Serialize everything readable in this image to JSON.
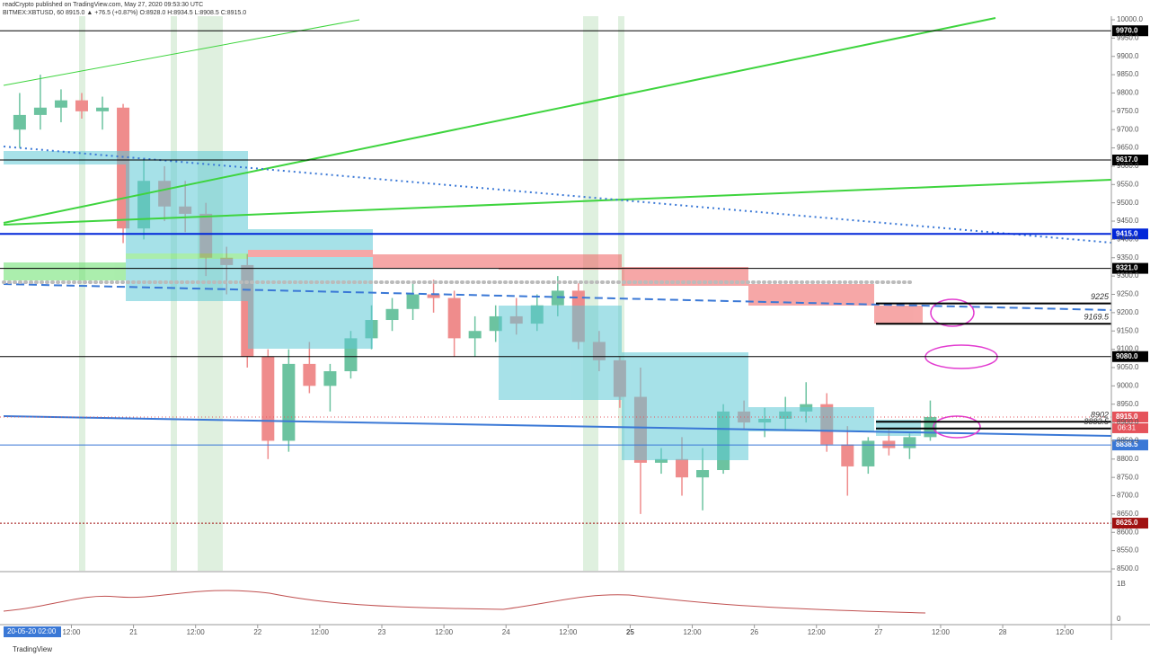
{
  "header": {
    "publisher": "readCrypto published on TradingView.com, May 27, 2020 09:53:30 UTC",
    "symbol": "BITMEX:XBTUSD, 60 8915.0 ▲ +76.5 (+0.87%) O:8928.0 H:8934.5 L:8908.5 C:8915.0"
  },
  "footer": {
    "crosshair_time": "20-05-20  02:00",
    "brand": "TradingView"
  },
  "chart_data": {
    "type": "candlestick",
    "x": [
      0,
      4,
      8,
      12,
      16,
      20,
      24,
      28,
      32,
      36,
      40,
      44,
      48,
      52,
      56,
      60,
      64,
      68,
      72,
      76,
      80,
      84,
      88,
      92,
      96,
      100,
      104,
      108,
      112,
      116,
      120,
      124,
      128,
      132,
      136,
      140,
      144,
      148,
      152,
      156,
      160,
      164,
      168,
      172,
      176
    ],
    "open": [
      9700,
      9740,
      9760,
      9780,
      9750,
      9760,
      9430,
      9560,
      9490,
      9470,
      9350,
      9330,
      9080,
      8850,
      9060,
      9000,
      9040,
      9130,
      9180,
      9210,
      9250,
      9240,
      9130,
      9150,
      9190,
      9170,
      9220,
      9260,
      9120,
      9070,
      8970,
      8790,
      8800,
      8750,
      8770,
      8930,
      8900,
      8910,
      8930,
      8950,
      8840,
      8780,
      8850,
      8830,
      8860
    ],
    "high": [
      9800,
      9850,
      9810,
      9800,
      9790,
      9770,
      9620,
      9600,
      9560,
      9500,
      9380,
      9360,
      9100,
      9100,
      9120,
      9060,
      9150,
      9220,
      9240,
      9280,
      9290,
      9260,
      9190,
      9220,
      9240,
      9250,
      9300,
      9280,
      9150,
      9080,
      9050,
      8830,
      8860,
      8830,
      8950,
      8960,
      8940,
      8970,
      9010,
      8980,
      8890,
      8860,
      8880,
      8870,
      8960
    ],
    "low": [
      9650,
      9700,
      9720,
      9730,
      9700,
      9390,
      9400,
      9450,
      9420,
      9300,
      9250,
      9050,
      8800,
      8820,
      8980,
      8930,
      9020,
      9100,
      9150,
      9180,
      9200,
      9080,
      9080,
      9120,
      9140,
      9150,
      9190,
      9100,
      9040,
      8940,
      8650,
      8760,
      8700,
      8660,
      8760,
      8880,
      8860,
      8880,
      8900,
      8820,
      8700,
      8760,
      8810,
      8800,
      8850
    ],
    "close": [
      9740,
      9760,
      9780,
      9750,
      9760,
      9430,
      9560,
      9490,
      9470,
      9350,
      9330,
      9080,
      8850,
      9060,
      9000,
      9040,
      9130,
      9180,
      9210,
      9250,
      9240,
      9130,
      9150,
      9190,
      9170,
      9220,
      9260,
      9120,
      9070,
      8970,
      8790,
      8800,
      8750,
      8770,
      8930,
      8900,
      8910,
      8930,
      8950,
      8840,
      8780,
      8850,
      8830,
      8860,
      8915
    ],
    "up_color": "#6cc3a0",
    "down_color": "#ef8c8c",
    "xlim": [
      -1,
      213
    ],
    "ylim": [
      8480,
      10010
    ],
    "xticks": [
      {
        "value": 12,
        "label": "12:00"
      },
      {
        "value": 24,
        "label": "21"
      },
      {
        "value": 36,
        "label": "12:00"
      },
      {
        "value": 48,
        "label": "22"
      },
      {
        "value": 60,
        "label": "12:00"
      },
      {
        "value": 72,
        "label": "23"
      },
      {
        "value": 84,
        "label": "12:00"
      },
      {
        "value": 96,
        "label": "24"
      },
      {
        "value": 108,
        "label": "12:00"
      },
      {
        "value": 120,
        "label": "25"
      },
      {
        "value": 132,
        "label": "12:00"
      },
      {
        "value": 144,
        "label": "26"
      },
      {
        "value": 156,
        "label": "12:00"
      },
      {
        "value": 168,
        "label": "27"
      },
      {
        "value": 180,
        "label": "12:00"
      },
      {
        "value": 192,
        "label": "28"
      },
      {
        "value": 204,
        "label": "12:00"
      }
    ],
    "yticks": [
      {
        "value": 8500,
        "label": "8500.0"
      },
      {
        "value": 8550,
        "label": "8550.0"
      },
      {
        "value": 8600,
        "label": "8600.0"
      },
      {
        "value": 8650,
        "label": "8650.0"
      },
      {
        "value": 8700,
        "label": "8700.0"
      },
      {
        "value": 8750,
        "label": "8750.0"
      },
      {
        "value": 8800,
        "label": "8800.0"
      },
      {
        "value": 8850,
        "label": "8850.0"
      },
      {
        "value": 8900,
        "label": "8900.0"
      },
      {
        "value": 8950,
        "label": "8950.0"
      },
      {
        "value": 9000,
        "label": "9000.0"
      },
      {
        "value": 9050,
        "label": "9050.0"
      },
      {
        "value": 9100,
        "label": "9100.0"
      },
      {
        "value": 9150,
        "label": "9150.0"
      },
      {
        "value": 9200,
        "label": "9200.0"
      },
      {
        "value": 9250,
        "label": "9250.0"
      },
      {
        "value": 9300,
        "label": "9300.0"
      },
      {
        "value": 9350,
        "label": "9350.0"
      },
      {
        "value": 9400,
        "label": "9400.0"
      },
      {
        "value": 9450,
        "label": "9450.0"
      },
      {
        "value": 9500,
        "label": "9500.0"
      },
      {
        "value": 9550,
        "label": "9550.0"
      },
      {
        "value": 9600,
        "label": "9600.0"
      },
      {
        "value": 9650,
        "label": "9650.0"
      },
      {
        "value": 9700,
        "label": "9700.0"
      },
      {
        "value": 9750,
        "label": "9750.0"
      },
      {
        "value": 9800,
        "label": "9800.0"
      },
      {
        "value": 9850,
        "label": "9850.0"
      },
      {
        "value": 9900,
        "label": "9900.0"
      },
      {
        "value": 9950,
        "label": "9950.0"
      },
      {
        "value": 10000,
        "label": "10000.0"
      }
    ],
    "levels": [
      {
        "value": 9970,
        "label": "9970.0",
        "color": "#000000"
      },
      {
        "value": 9617,
        "label": "9617.0",
        "color": "#000000"
      },
      {
        "value": 9415,
        "label": "9415.0",
        "color": "#0026d9"
      },
      {
        "value": 9321,
        "label": "9321.0",
        "color": "#000000"
      },
      {
        "value": 9080,
        "label": "9080.0",
        "color": "#000000"
      },
      {
        "value": 8838.5,
        "label": "8838.5",
        "color": "#3a78d6"
      },
      {
        "value": 8625,
        "label": "8625.0",
        "color": "#a01010"
      }
    ],
    "last_price": {
      "value": 8915,
      "label": "8915.0",
      "countdown": "06:31",
      "color": "#e5535b"
    },
    "annotations": [
      9225,
      9169.5,
      8902,
      8883.5
    ],
    "volume_axis": [
      "1B",
      "0"
    ]
  }
}
